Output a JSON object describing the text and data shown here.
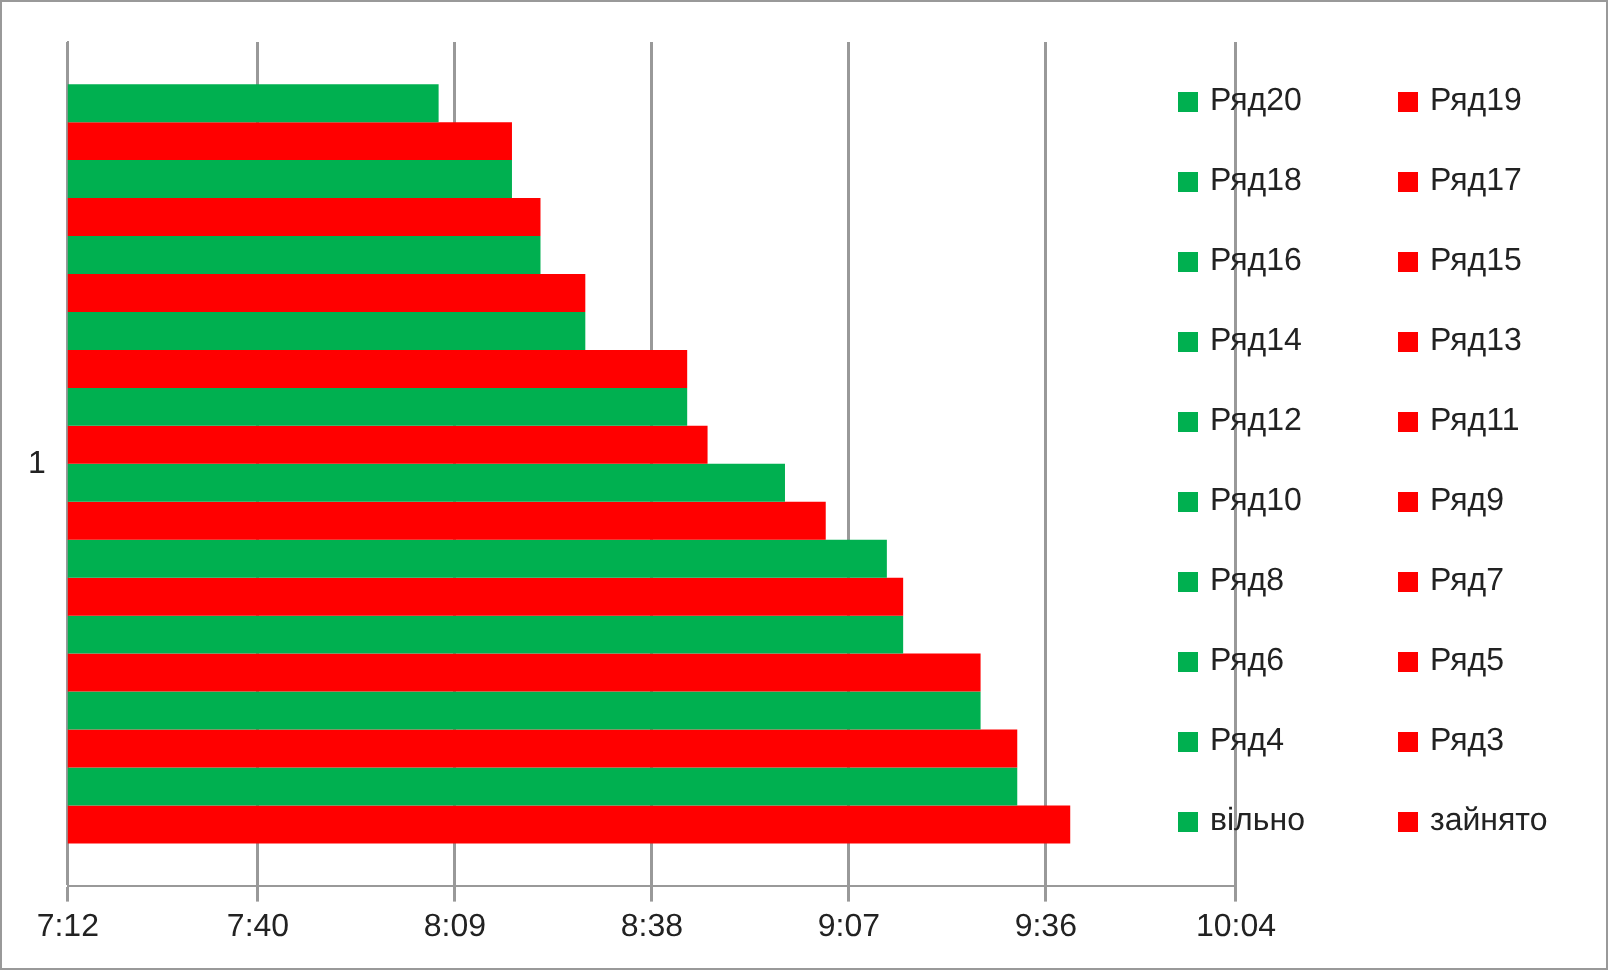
{
  "chart_data": {
    "type": "bar",
    "orientation": "horizontal",
    "categories": [
      "1"
    ],
    "xlim": [
      7.2,
      10.0667
    ],
    "xticks": [
      {
        "value": 7.2,
        "label": "7:12"
      },
      {
        "value": 7.6667,
        "label": "7:40"
      },
      {
        "value": 8.15,
        "label": "8:09"
      },
      {
        "value": 8.6333,
        "label": "8:38"
      },
      {
        "value": 9.1167,
        "label": "9:07"
      },
      {
        "value": 9.6,
        "label": "9:36"
      },
      {
        "value": 10.0667,
        "label": "10:04"
      }
    ],
    "grid": "x",
    "legend": "right",
    "series": [
      {
        "name": "Ряд20",
        "color": "#00b050",
        "values": [
          8.11
        ]
      },
      {
        "name": "Ряд19",
        "color": "#ff0000",
        "values": [
          8.29
        ]
      },
      {
        "name": "Ряд18",
        "color": "#00b050",
        "values": [
          8.29
        ]
      },
      {
        "name": "Ряд17",
        "color": "#ff0000",
        "values": [
          8.36
        ]
      },
      {
        "name": "Ряд16",
        "color": "#00b050",
        "values": [
          8.36
        ]
      },
      {
        "name": "Ряд15",
        "color": "#ff0000",
        "values": [
          8.47
        ]
      },
      {
        "name": "Ряд14",
        "color": "#00b050",
        "values": [
          8.47
        ]
      },
      {
        "name": "Ряд13",
        "color": "#ff0000",
        "values": [
          8.72
        ]
      },
      {
        "name": "Ряд12",
        "color": "#00b050",
        "values": [
          8.72
        ]
      },
      {
        "name": "Ряд11",
        "color": "#ff0000",
        "values": [
          8.77
        ]
      },
      {
        "name": "Ряд10",
        "color": "#00b050",
        "values": [
          8.96
        ]
      },
      {
        "name": "Ряд9",
        "color": "#ff0000",
        "values": [
          9.06
        ]
      },
      {
        "name": "Ряд8",
        "color": "#00b050",
        "values": [
          9.21
        ]
      },
      {
        "name": "Ряд7",
        "color": "#ff0000",
        "values": [
          9.25
        ]
      },
      {
        "name": "Ряд6",
        "color": "#00b050",
        "values": [
          9.25
        ]
      },
      {
        "name": "Ряд5",
        "color": "#ff0000",
        "values": [
          9.44
        ]
      },
      {
        "name": "Ряд4",
        "color": "#00b050",
        "values": [
          9.44
        ]
      },
      {
        "name": "Ряд3",
        "color": "#ff0000",
        "values": [
          9.53
        ]
      },
      {
        "name": "вільно",
        "color": "#00b050",
        "values": [
          9.53
        ]
      },
      {
        "name": "зайнято",
        "color": "#ff0000",
        "values": [
          9.66
        ]
      }
    ]
  }
}
